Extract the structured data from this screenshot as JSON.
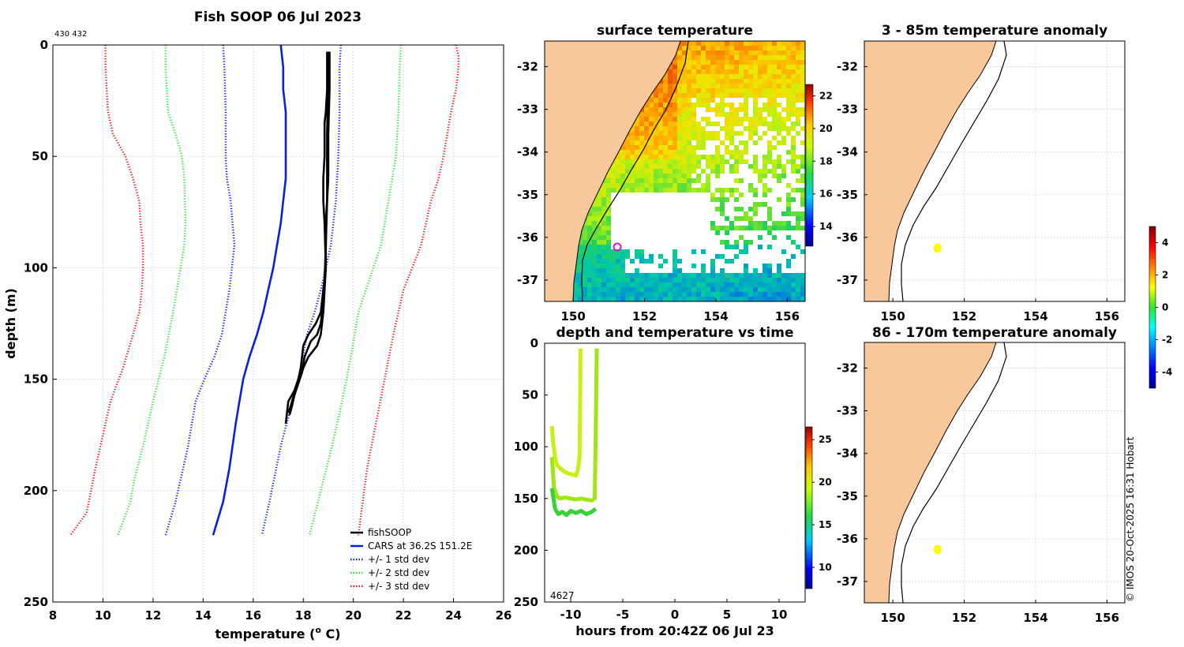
{
  "figure_title": "Fish SOOP 06 Jul 2023",
  "id_label": "430 432",
  "copyright": "© IMOS 20-Oct-2025 16:31 Hobart",
  "colors": {
    "land": "#f9c89a",
    "fishsoop": "#000000",
    "cars": "#0a1ee6",
    "std1": "#0a1ee6",
    "std2": "#2ee62e",
    "std3": "#e61414",
    "coast": "#000000",
    "marker": "#e014e0"
  },
  "chart_data": [
    {
      "id": "profile",
      "type": "line",
      "title": "Fish SOOP 06 Jul 2023",
      "xlabel": "temperature (",
      "xlabel_sup": "o",
      "xlabel_unit": " C)",
      "ylabel": "depth (m)",
      "xlim": [
        8,
        26
      ],
      "ylim": [
        0,
        250
      ],
      "x_ticks": [
        8,
        10,
        12,
        14,
        16,
        18,
        20,
        22,
        24,
        26
      ],
      "y_ticks": [
        0,
        50,
        100,
        150,
        200,
        250
      ],
      "legend": [
        "fishSOOP",
        "CARS at 36.2S 151.2E",
        "+/- 1 std dev",
        "+/- 2 std dev",
        "+/- 3 std dev"
      ],
      "legend_position": "bottom-right",
      "series": [
        {
          "name": "CARS",
          "style": "solid",
          "temps": [
            17.1,
            17.2,
            17.2,
            17.3,
            17.3,
            17.3,
            17.2,
            17.1,
            16.95,
            16.8,
            16.6,
            16.4,
            16.15,
            15.85,
            15.6,
            15.45,
            15.3,
            15.05,
            14.8,
            14.4
          ],
          "depths": [
            0,
            10,
            20,
            30,
            50,
            60,
            70,
            80,
            90,
            100,
            110,
            120,
            130,
            140,
            150,
            160,
            170,
            190,
            205,
            220
          ]
        },
        {
          "name": "+1 std",
          "style": "dotted",
          "temps": [
            19.5,
            19.45,
            19.45,
            19.4,
            19.3,
            19.1,
            18.9,
            18.7,
            18.45,
            18.15,
            17.8,
            17.45,
            17.1,
            16.65,
            16.35
          ],
          "depths": [
            0,
            10,
            30,
            50,
            70,
            90,
            100,
            110,
            120,
            130,
            150,
            165,
            180,
            205,
            220
          ]
        },
        {
          "name": "-1 std",
          "style": "dotted",
          "temps": [
            14.8,
            14.85,
            14.9,
            14.9,
            14.95,
            15.1,
            15.25,
            15.05,
            14.75,
            14.45,
            14.05,
            13.7,
            13.4,
            13.2,
            12.9,
            12.5
          ],
          "depths": [
            0,
            10,
            30,
            50,
            60,
            70,
            90,
            110,
            130,
            140,
            150,
            160,
            180,
            190,
            205,
            220
          ]
        },
        {
          "name": "+2 std",
          "style": "dotted",
          "temps": [
            21.9,
            21.85,
            21.8,
            21.7,
            21.4,
            21.1,
            20.8,
            20.5,
            20.2,
            19.9,
            19.55,
            19.15,
            18.7,
            18.25
          ],
          "depths": [
            0,
            10,
            30,
            50,
            70,
            90,
            100,
            110,
            120,
            140,
            160,
            180,
            200,
            220
          ]
        },
        {
          "name": "-2 std",
          "style": "dotted",
          "temps": [
            12.5,
            12.5,
            12.55,
            12.6,
            12.9,
            13.15,
            13.25,
            13.3,
            13.25,
            13.1,
            12.8,
            12.45,
            12.0,
            11.6,
            11.25,
            11.1,
            10.6
          ],
          "depths": [
            0,
            10,
            20,
            30,
            40,
            50,
            60,
            80,
            90,
            100,
            120,
            140,
            160,
            180,
            195,
            205,
            220
          ]
        },
        {
          "name": "+3 std",
          "style": "dotted",
          "temps": [
            24.1,
            24.2,
            24.2,
            24.1,
            23.9,
            23.6,
            23.4,
            23.1,
            22.7,
            22.35,
            22.0,
            21.6,
            21.25,
            20.9,
            20.55,
            20.2
          ],
          "depths": [
            0,
            5,
            10,
            20,
            30,
            50,
            60,
            70,
            90,
            100,
            110,
            130,
            150,
            170,
            190,
            220
          ]
        },
        {
          "name": "-3 std",
          "style": "dotted",
          "temps": [
            10.1,
            10.1,
            10.15,
            10.2,
            10.4,
            10.9,
            11.2,
            11.45,
            11.5,
            11.6,
            11.6,
            11.55,
            11.45,
            11.2,
            10.8,
            10.3,
            10.0,
            9.7,
            9.35,
            8.7
          ],
          "depths": [
            0,
            10,
            20,
            30,
            40,
            50,
            60,
            70,
            80,
            90,
            100,
            110,
            120,
            130,
            145,
            160,
            175,
            190,
            210,
            220
          ]
        },
        {
          "name": "fishSOOP cast 1",
          "style": "thick",
          "temps": [
            18.95,
            18.95,
            18.9,
            18.85,
            18.85,
            18.8,
            18.8,
            18.85,
            18.9,
            18.8,
            18.7,
            18.5,
            18.2,
            18.0,
            17.9,
            17.8,
            17.65,
            17.4,
            17.3
          ],
          "depths": [
            3,
            20,
            30,
            35,
            50,
            60,
            70,
            80,
            100,
            110,
            120,
            125,
            130,
            135,
            145,
            150,
            155,
            160,
            170
          ]
        },
        {
          "name": "fishSOOP cast 2",
          "style": "thick",
          "temps": [
            19.05,
            19.05,
            19.0,
            19.0,
            18.9,
            18.9,
            18.85,
            18.8,
            18.75,
            18.7,
            18.55,
            18.2,
            18.0,
            17.85,
            17.7,
            17.6,
            17.5,
            17.4
          ],
          "depths": [
            3,
            20,
            40,
            60,
            80,
            100,
            110,
            120,
            125,
            130,
            135,
            140,
            145,
            150,
            155,
            158,
            162,
            165
          ]
        },
        {
          "name": "fishSOOP cast 3",
          "style": "thick",
          "temps": [
            19.0,
            19.0,
            18.95,
            18.95,
            18.9,
            18.85,
            18.8,
            18.8,
            18.7,
            18.55,
            18.3,
            18.05,
            17.95,
            17.8,
            17.65,
            17.55,
            17.45
          ],
          "depths": [
            3,
            15,
            40,
            70,
            90,
            105,
            110,
            115,
            125,
            130,
            133,
            140,
            147,
            152,
            157,
            162,
            166
          ]
        }
      ]
    },
    {
      "id": "sst",
      "type": "heatmap",
      "title": "surface temperature",
      "xlim": [
        149.2,
        156.5
      ],
      "ylim": [
        -37.5,
        -31.4
      ],
      "x_ticks": [
        150,
        152,
        154,
        156
      ],
      "y_ticks": [
        -32,
        -33,
        -34,
        -35,
        -36,
        -37
      ],
      "colorbar_ticks": [
        14,
        16,
        18,
        20,
        22
      ],
      "colorbar_range": [
        12.8,
        22.7
      ],
      "marker": {
        "lon": 151.2,
        "lat": -36.25
      }
    },
    {
      "id": "anom_shallow",
      "type": "heatmap",
      "title": "3 - 85m temperature anomaly",
      "xlim": [
        149.2,
        156.5
      ],
      "ylim": [
        -37.5,
        -31.4
      ],
      "x_ticks": [
        150,
        152,
        154,
        156
      ],
      "y_ticks": [
        -32,
        -33,
        -34,
        -35,
        -36,
        -37
      ],
      "points": [
        {
          "lon": 151.25,
          "lat": -36.25,
          "value": 1.3
        }
      ]
    },
    {
      "id": "anom_deep",
      "type": "heatmap",
      "title": "86 - 170m temperature anomaly",
      "xlim": [
        149.2,
        156.5
      ],
      "ylim": [
        -37.5,
        -31.4
      ],
      "x_ticks": [
        150,
        152,
        154,
        156
      ],
      "y_ticks": [
        -32,
        -33,
        -34,
        -35,
        -36,
        -37
      ],
      "points": [
        {
          "lon": 151.25,
          "lat": -36.25,
          "value": 1.3
        }
      ]
    },
    {
      "id": "anom_colorbar",
      "type": "heatmap",
      "colorbar_ticks": [
        -4,
        -2,
        0,
        2,
        4
      ],
      "colorbar_range": [
        -5,
        5
      ]
    },
    {
      "id": "time_depth",
      "type": "scatter",
      "title": "depth and temperature vs time",
      "xlabel": "hours from 20:42Z 06 Jul 23",
      "xlim": [
        -12.5,
        12.5
      ],
      "ylim": [
        0,
        250
      ],
      "x_ticks": [
        -10,
        -5,
        0,
        5,
        10
      ],
      "y_ticks": [
        0,
        50,
        100,
        150,
        200,
        250
      ],
      "annotation": "4627",
      "colorbar_ticks": [
        10,
        15,
        20,
        25
      ],
      "colorbar_range": [
        7.5,
        26.5
      ],
      "tracks": [
        {
          "hours": [
            -11.8,
            -11.7,
            -11.5,
            -11.3,
            -11.0,
            -10.6,
            -10.2,
            -9.8,
            -9.5,
            -9.3,
            -9.15,
            -9.1,
            -9.05
          ],
          "depths": [
            80,
            95,
            110,
            118,
            121,
            124,
            126,
            127,
            128,
            122,
            110,
            60,
            5
          ]
        },
        {
          "hours": [
            -11.8,
            -11.6,
            -11.3,
            -11.0,
            -10.5,
            -10.0,
            -9.5,
            -9.0,
            -8.5,
            -8.0,
            -7.7,
            -7.6,
            -7.5
          ],
          "depths": [
            110,
            140,
            148,
            150,
            149,
            150,
            151,
            150,
            151,
            152,
            150,
            90,
            5
          ]
        },
        {
          "hours": [
            -11.8,
            -11.5,
            -11.2,
            -10.8,
            -10.4,
            -10.0,
            -9.5,
            -9.0,
            -8.5,
            -8.0,
            -7.6
          ],
          "depths": [
            140,
            160,
            165,
            163,
            166,
            162,
            164,
            162,
            165,
            163,
            160
          ]
        }
      ]
    }
  ]
}
